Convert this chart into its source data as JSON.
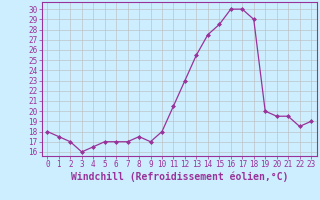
{
  "x": [
    0,
    1,
    2,
    3,
    4,
    5,
    6,
    7,
    8,
    9,
    10,
    11,
    12,
    13,
    14,
    15,
    16,
    17,
    18,
    19,
    20,
    21,
    22,
    23
  ],
  "y": [
    18,
    17.5,
    17,
    16,
    16.5,
    17,
    17,
    17,
    17.5,
    17,
    18,
    20.5,
    23,
    25.5,
    27.5,
    28.5,
    30,
    30,
    29,
    20,
    19.5,
    19.5,
    18.5,
    19
  ],
  "line_color": "#993399",
  "marker": "D",
  "marker_size": 2.0,
  "bg_color": "#cceeff",
  "grid_color": "#bbbbbb",
  "xlabel": "Windchill (Refroidissement éolien,°C)",
  "xlabel_fontsize": 7,
  "ytick_labels": [
    "16",
    "17",
    "18",
    "19",
    "20",
    "21",
    "22",
    "23",
    "24",
    "25",
    "26",
    "27",
    "28",
    "29",
    "30"
  ],
  "ytick_vals": [
    16,
    17,
    18,
    19,
    20,
    21,
    22,
    23,
    24,
    25,
    26,
    27,
    28,
    29,
    30
  ],
  "ylim": [
    15.6,
    30.7
  ],
  "xlim": [
    -0.5,
    23.5
  ],
  "tick_fontsize": 5.5,
  "lw": 0.9
}
